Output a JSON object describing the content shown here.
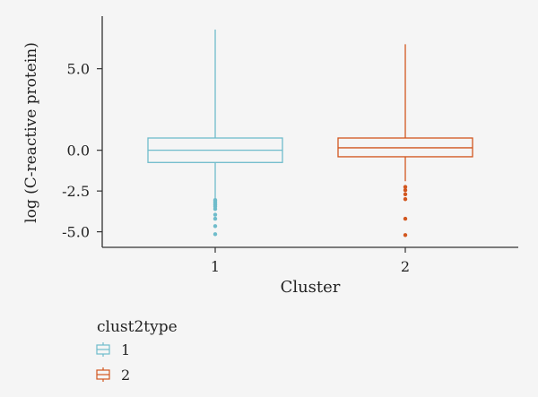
{
  "chart_data": {
    "type": "box",
    "xlabel": "Cluster",
    "ylabel": "log (C-reactive protein)",
    "categories": [
      "1",
      "2"
    ],
    "y_ticks": [
      "5.0",
      "0.0",
      "-2.5",
      "-5.0"
    ],
    "y_tick_values": [
      5.0,
      0.0,
      -2.5,
      -5.0
    ],
    "ylim": [
      -5.35,
      7.4
    ],
    "grid": false,
    "legend_position": "bottom-left",
    "legend": {
      "title": "clust2type",
      "entries": [
        {
          "label": "1",
          "color": "#6fbccb"
        },
        {
          "label": "2",
          "color": "#d2561e"
        }
      ]
    },
    "series": [
      {
        "category": "1",
        "color": "#6fbccb",
        "whisker_low": -3.0,
        "q1": -0.75,
        "median": 0.0,
        "q3": 0.75,
        "whisker_high": 7.4,
        "outliers": [
          -3.05,
          -3.15,
          -3.25,
          -3.35,
          -3.45,
          -3.6,
          -3.95,
          -4.2,
          -4.65,
          -5.15
        ]
      },
      {
        "category": "2",
        "color": "#d2561e",
        "whisker_low": -1.9,
        "q1": -0.4,
        "median": 0.15,
        "q3": 0.75,
        "whisker_high": 6.5,
        "outliers": [
          -2.25,
          -2.45,
          -2.7,
          -3.0,
          -4.2,
          -5.2
        ]
      }
    ]
  }
}
